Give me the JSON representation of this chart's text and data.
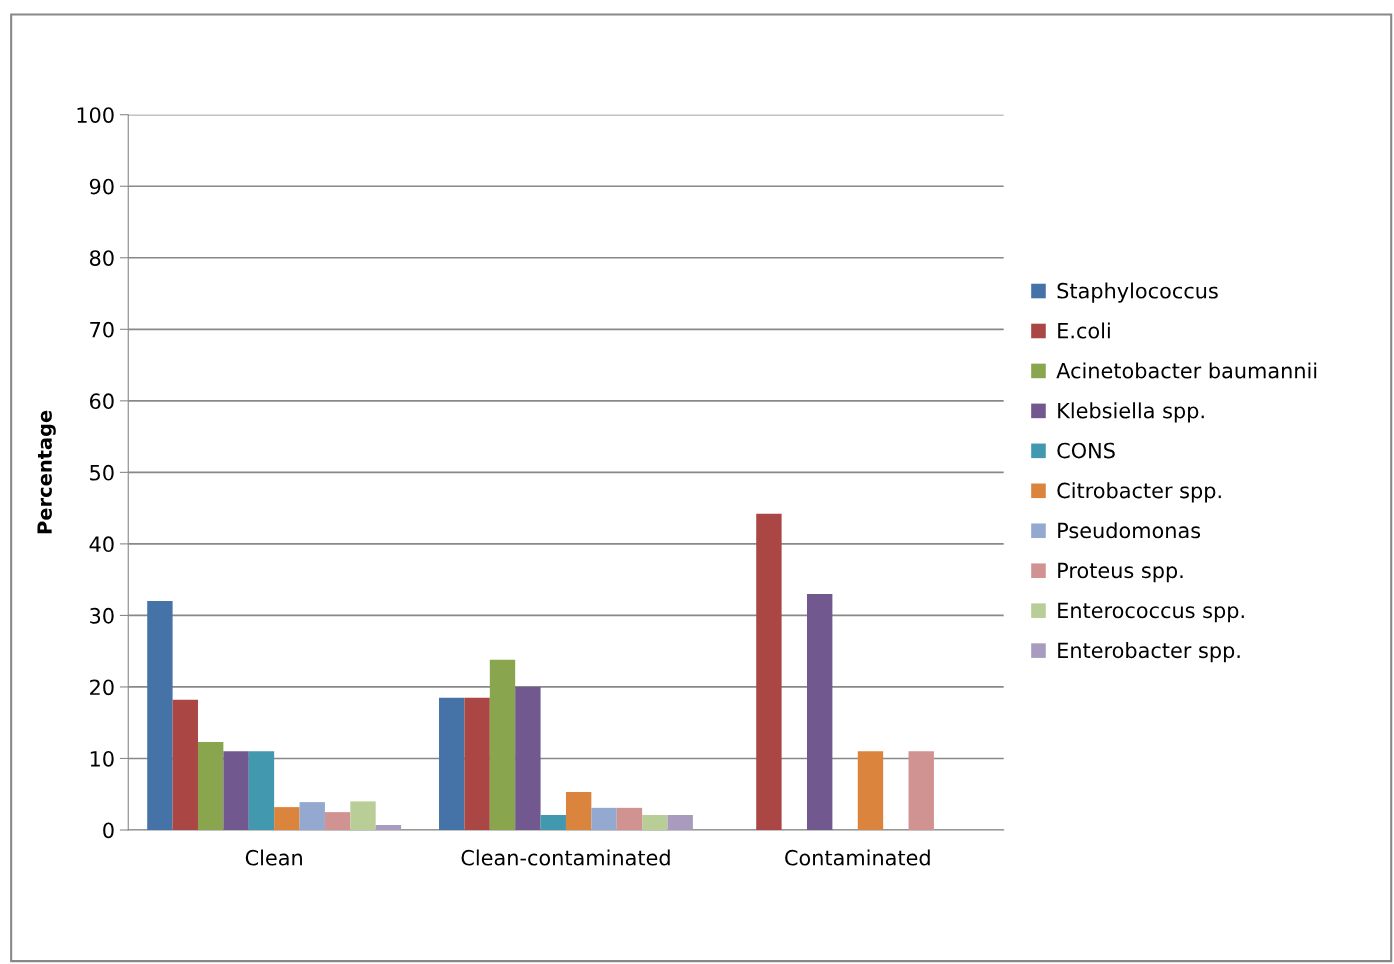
{
  "chart_data": {
    "type": "bar",
    "ylabel": "Percentage",
    "categories": [
      "Clean",
      "Clean-contaminated",
      "Contaminated"
    ],
    "series": [
      {
        "name": "Staphylococcus",
        "color": "#4572a7",
        "values": [
          32,
          18.5,
          0
        ]
      },
      {
        "name": "E.coli",
        "color": "#aa4643",
        "values": [
          18.2,
          18.5,
          44.2
        ]
      },
      {
        "name": "Acinetobacter baumannii",
        "color": "#89a54e",
        "values": [
          12.3,
          23.8,
          0
        ]
      },
      {
        "name": "Klebsiella spp.",
        "color": "#71588f",
        "values": [
          11,
          20,
          33
        ]
      },
      {
        "name": "CONS",
        "color": "#4198af",
        "values": [
          11,
          2.1,
          0
        ]
      },
      {
        "name": "Citrobacter spp.",
        "color": "#db843d",
        "values": [
          3.2,
          5.3,
          11
        ]
      },
      {
        "name": "Pseudomonas",
        "color": "#93a9cf",
        "values": [
          3.9,
          3.1,
          0
        ]
      },
      {
        "name": "Proteus spp.",
        "color": "#d19392",
        "values": [
          2.5,
          3.1,
          11
        ]
      },
      {
        "name": "Enterococcus spp.",
        "color": "#b9cd96",
        "values": [
          4,
          2.1,
          0
        ]
      },
      {
        "name": "Enterobacter spp.",
        "color": "#a99bbd",
        "values": [
          0.7,
          2.1,
          0
        ]
      }
    ],
    "ylim": [
      0,
      100
    ],
    "yticks": [
      0,
      10,
      20,
      30,
      40,
      50,
      60,
      70,
      80,
      90,
      100
    ],
    "grid": "y",
    "legend": "right"
  }
}
